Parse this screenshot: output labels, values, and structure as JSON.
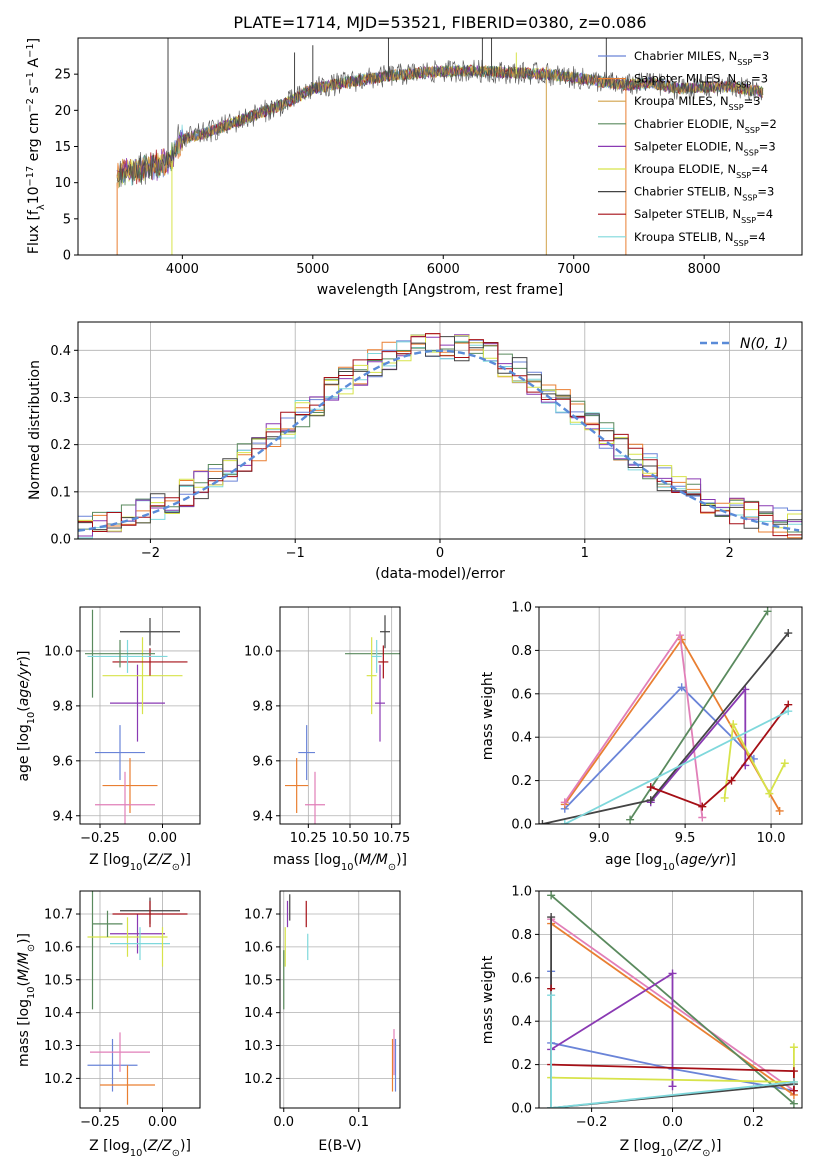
{
  "title": "PLATE=1714, MJD=53521, FIBERID=0380, z=0.086",
  "colors": {
    "chabrier_miles": "#6a84d8",
    "salpeter_miles": "#e97f32",
    "kroupa_miles": "#d2a24a",
    "chabrier_elodie": "#5a8a5e",
    "salpeter_elodie": "#8a3ab3",
    "kroupa_elodie": "#d7e34a",
    "chabrier_stelib": "#444444",
    "salpeter_stelib": "#a50f16",
    "kroupa_stelib": "#7fd8dc",
    "pink": "#e17fb8",
    "normal": "#5a8bd8"
  },
  "chart_data": [
    {
      "id": "spectrum",
      "type": "line",
      "xlabel": "wavelength [Angstrom, rest frame]",
      "ylabel": "Flux [f_λ10^-17 erg cm^-2 s^-1 A^-1]",
      "xlim": [
        3200,
        8750
      ],
      "ylim": [
        0,
        30
      ],
      "xticks": [
        4000,
        5000,
        6000,
        7000,
        8000
      ],
      "yticks": [
        0,
        5,
        10,
        15,
        20,
        25
      ],
      "continuum": {
        "x": [
          3500,
          3700,
          3900,
          4000,
          4200,
          4500,
          4800,
          5000,
          5300,
          5600,
          5900,
          6200,
          6500,
          6800,
          7000,
          7200,
          7400,
          7600,
          7800,
          8000,
          8200,
          8450
        ],
        "y": [
          11,
          12,
          13,
          16,
          17,
          19,
          21,
          23,
          24,
          24.8,
          25.3,
          25.5,
          25.2,
          25,
          24.5,
          24,
          23.5,
          23.8,
          23,
          23.2,
          23.3,
          22.5
        ]
      },
      "legend": [
        {
          "text": "Chabrier MILES, N",
          "sub": "SSP",
          "tail": "=3"
        },
        {
          "text": "Salpeter MILES, N",
          "sub": "SSP",
          "tail": "=3"
        },
        {
          "text": "Kroupa MILES, N",
          "sub": "SSP",
          "tail": "=3"
        },
        {
          "text": "Chabrier ELODIE, N",
          "sub": "SSP",
          "tail": "=2"
        },
        {
          "text": "Salpeter ELODIE, N",
          "sub": "SSP",
          "tail": "=3"
        },
        {
          "text": "Kroupa ELODIE, N",
          "sub": "SSP",
          "tail": "=4"
        },
        {
          "text": "Chabrier STELIB, N",
          "sub": "SSP",
          "tail": "=3"
        },
        {
          "text": "Salpeter STELIB, N",
          "sub": "SSP",
          "tail": "=4"
        },
        {
          "text": "Kroupa STELIB, N",
          "sub": "SSP",
          "tail": "=4"
        }
      ]
    },
    {
      "id": "residuals",
      "type": "histogram",
      "xlabel": "(data-model)/error",
      "ylabel": "Normed distribution",
      "xlim": [
        -2.5,
        2.5
      ],
      "ylim": [
        0,
        0.46
      ],
      "xticks": [
        -2,
        -1,
        0,
        1,
        2
      ],
      "yticks": [
        0.0,
        0.1,
        0.2,
        0.3,
        0.4
      ],
      "bin_width": 0.1,
      "legend": "N(0, 1)"
    },
    {
      "id": "age_vs_z",
      "type": "errorbar",
      "xlabel": "Z [log10(Z/Z⊙)]",
      "ylabel": "age  [log10(age/yr)]",
      "xlim": [
        -0.33,
        0.15
      ],
      "ylim": [
        9.37,
        10.16
      ],
      "xticks": [
        -0.25,
        0.0
      ],
      "yticks": [
        9.4,
        9.6,
        9.8,
        10.0
      ],
      "points": [
        {
          "x": -0.17,
          "y": 9.63,
          "dx": 0.1,
          "dy": 0.1,
          "c": "chabrier_miles"
        },
        {
          "x": -0.13,
          "y": 9.51,
          "dx": 0.11,
          "dy": 0.1,
          "c": "salpeter_miles"
        },
        {
          "x": -0.15,
          "y": 9.44,
          "dx": 0.12,
          "dy": 0.12,
          "c": "pink"
        },
        {
          "x": -0.28,
          "y": 9.99,
          "dx": 0.0,
          "dy": 0.16,
          "c": "chabrier_elodie"
        },
        {
          "x": -0.1,
          "y": 9.81,
          "dx": 0.11,
          "dy": 0.14,
          "c": "salpeter_elodie"
        },
        {
          "x": -0.08,
          "y": 9.91,
          "dx": 0.16,
          "dy": 0.14,
          "c": "kroupa_elodie"
        },
        {
          "x": -0.05,
          "y": 10.07,
          "dx": 0.12,
          "dy": 0.05,
          "c": "chabrier_stelib"
        },
        {
          "x": -0.05,
          "y": 9.96,
          "dx": 0.15,
          "dy": 0.05,
          "c": "salpeter_stelib"
        },
        {
          "x": -0.14,
          "y": 9.98,
          "dx": 0.16,
          "dy": 0.06,
          "c": "kroupa_stelib"
        },
        {
          "x": -0.17,
          "y": 9.99,
          "dx": 0.14,
          "dy": 0.05,
          "c": "chabrier_elodie"
        }
      ]
    },
    {
      "id": "age_vs_mass",
      "type": "errorbar",
      "xlabel": "mass [log10(M/M⊙)]",
      "ylabel": "",
      "xlim": [
        10.08,
        10.8
      ],
      "ylim": [
        9.37,
        10.16
      ],
      "xticks": [
        10.25,
        10.5,
        10.75
      ],
      "yticks": [
        9.4,
        9.6,
        10.0
      ],
      "ytick_labels": [
        "9.4",
        "9.6",
        "9.8",
        "10.0"
      ],
      "yticks_full": [
        9.4,
        9.6,
        9.8,
        10.0
      ],
      "points": [
        {
          "x": 10.24,
          "y": 9.63,
          "dx": 0.05,
          "dy": 0.1,
          "c": "chabrier_miles"
        },
        {
          "x": 10.18,
          "y": 9.51,
          "dx": 0.07,
          "dy": 0.1,
          "c": "salpeter_miles"
        },
        {
          "x": 10.29,
          "y": 9.44,
          "dx": 0.06,
          "dy": 0.12,
          "c": "pink"
        },
        {
          "x": 10.66,
          "y": 9.99,
          "dx": 0.19,
          "dy": 0.0,
          "c": "chabrier_elodie"
        },
        {
          "x": 10.68,
          "y": 9.81,
          "dx": 0.03,
          "dy": 0.14,
          "c": "salpeter_elodie"
        },
        {
          "x": 10.63,
          "y": 9.91,
          "dx": 0.03,
          "dy": 0.14,
          "c": "kroupa_elodie"
        },
        {
          "x": 10.71,
          "y": 10.07,
          "dx": 0.03,
          "dy": 0.06,
          "c": "chabrier_stelib"
        },
        {
          "x": 10.7,
          "y": 9.96,
          "dx": 0.03,
          "dy": 0.06,
          "c": "salpeter_stelib"
        },
        {
          "x": 10.66,
          "y": 9.98,
          "dx": 0.03,
          "dy": 0.06,
          "c": "kroupa_stelib"
        }
      ]
    },
    {
      "id": "weight_vs_age",
      "type": "line",
      "xlabel": "age  [log10(age/yr)]",
      "ylabel": "mass weight",
      "xlim": [
        8.65,
        10.18
      ],
      "ylim": [
        0,
        1.0
      ],
      "xticks": [
        9.0,
        9.5,
        10.0
      ],
      "yticks": [
        0.0,
        0.2,
        0.4,
        0.6,
        0.8,
        1.0
      ],
      "series": [
        {
          "c": "chabrier_miles",
          "x": [
            8.8,
            9.48,
            9.9
          ],
          "y": [
            0.07,
            0.63,
            0.3
          ]
        },
        {
          "c": "salpeter_miles",
          "x": [
            8.8,
            9.48,
            10.05
          ],
          "y": [
            0.09,
            0.85,
            0.06
          ]
        },
        {
          "c": "pink",
          "x": [
            8.8,
            9.47,
            9.6
          ],
          "y": [
            0.1,
            0.87,
            0.03
          ]
        },
        {
          "c": "chabrier_elodie",
          "x": [
            9.18,
            9.98
          ],
          "y": [
            0.02,
            0.98
          ]
        },
        {
          "c": "salpeter_elodie",
          "x": [
            9.3,
            9.85,
            9.85
          ],
          "y": [
            0.1,
            0.62,
            0.27
          ]
        },
        {
          "c": "kroupa_elodie",
          "x": [
            9.73,
            9.78,
            9.99,
            10.08
          ],
          "y": [
            0.12,
            0.46,
            0.14,
            0.28
          ]
        },
        {
          "c": "chabrier_stelib",
          "x": [
            8.67,
            9.3,
            10.1
          ],
          "y": [
            0.0,
            0.11,
            0.88
          ]
        },
        {
          "c": "salpeter_stelib",
          "x": [
            9.3,
            9.6,
            9.77,
            10.1
          ],
          "y": [
            0.17,
            0.08,
            0.2,
            0.55
          ]
        },
        {
          "c": "kroupa_stelib",
          "x": [
            8.8,
            10.1
          ],
          "y": [
            0.0,
            0.52
          ]
        }
      ]
    },
    {
      "id": "mass_vs_z",
      "type": "errorbar",
      "xlabel": "Z [log10(Z/Z⊙)]",
      "ylabel": "mass [log10(M/M⊙)]",
      "xlim": [
        -0.33,
        0.15
      ],
      "ylim": [
        10.11,
        10.77
      ],
      "xticks": [
        -0.25,
        0.0
      ],
      "yticks": [
        10.2,
        10.3,
        10.4,
        10.5,
        10.6,
        10.7
      ],
      "points": [
        {
          "x": -0.2,
          "y": 10.24,
          "dx": 0.1,
          "dy": 0.08,
          "c": "chabrier_miles"
        },
        {
          "x": -0.14,
          "y": 10.18,
          "dx": 0.11,
          "dy": 0.06,
          "c": "salpeter_miles"
        },
        {
          "x": -0.17,
          "y": 10.28,
          "dx": 0.12,
          "dy": 0.06,
          "c": "pink"
        },
        {
          "x": -0.28,
          "y": 10.66,
          "dx": 0.0,
          "dy": 0.25,
          "c": "chabrier_elodie"
        },
        {
          "x": -0.1,
          "y": 10.64,
          "dx": 0.11,
          "dy": 0.06,
          "c": "salpeter_elodie"
        },
        {
          "x": -0.14,
          "y": 10.63,
          "dx": 0.16,
          "dy": 0.06,
          "c": "kroupa_elodie"
        },
        {
          "x": -0.05,
          "y": 10.71,
          "dx": 0.12,
          "dy": 0.04,
          "c": "chabrier_stelib"
        },
        {
          "x": -0.05,
          "y": 10.7,
          "dx": 0.15,
          "dy": 0.04,
          "c": "salpeter_stelib"
        },
        {
          "x": -0.09,
          "y": 10.61,
          "dx": 0.12,
          "dy": 0.05,
          "c": "kroupa_stelib"
        },
        {
          "x": -0.22,
          "y": 10.67,
          "dx": 0.06,
          "dy": 0.04,
          "c": "chabrier_elodie"
        },
        {
          "x": 0.0,
          "y": 10.6,
          "dx": 0.0,
          "dy": 0.06,
          "c": "kroupa_elodie"
        }
      ]
    },
    {
      "id": "mass_vs_ebv",
      "type": "errorbar",
      "xlabel": "E(B-V)",
      "ylabel": "",
      "xlim": [
        -0.005,
        0.155
      ],
      "ylim": [
        10.11,
        10.77
      ],
      "xticks": [
        0.0,
        0.1
      ],
      "yticks": [
        10.2,
        10.3,
        10.4,
        10.5,
        10.6,
        10.7
      ],
      "points": [
        {
          "x": 0.0,
          "y": 10.5,
          "dx": 0.0,
          "dy": 0.09,
          "c": "chabrier_elodie"
        },
        {
          "x": 0.002,
          "y": 10.6,
          "dx": 0.0,
          "dy": 0.06,
          "c": "kroupa_elodie"
        },
        {
          "x": 0.005,
          "y": 10.7,
          "dx": 0.0,
          "dy": 0.04,
          "c": "salpeter_elodie"
        },
        {
          "x": 0.008,
          "y": 10.72,
          "dx": 0.0,
          "dy": 0.04,
          "c": "chabrier_stelib"
        },
        {
          "x": 0.03,
          "y": 10.7,
          "dx": 0.0,
          "dy": 0.04,
          "c": "salpeter_stelib"
        },
        {
          "x": 0.032,
          "y": 10.6,
          "dx": 0.0,
          "dy": 0.04,
          "c": "kroupa_stelib"
        },
        {
          "x": 0.145,
          "y": 10.24,
          "dx": 0.0,
          "dy": 0.08,
          "c": "salpeter_miles"
        },
        {
          "x": 0.147,
          "y": 10.28,
          "dx": 0.0,
          "dy": 0.07,
          "c": "pink"
        },
        {
          "x": 0.149,
          "y": 10.24,
          "dx": 0.0,
          "dy": 0.08,
          "c": "chabrier_miles"
        }
      ]
    },
    {
      "id": "weight_vs_z",
      "type": "line",
      "xlabel": "Z [log10(Z/Z⊙)]",
      "ylabel": "mass weight",
      "xlim": [
        -0.33,
        0.32
      ],
      "ylim": [
        0,
        1.0
      ],
      "xticks": [
        -0.2,
        0.0,
        0.2
      ],
      "yticks": [
        0.0,
        0.2,
        0.4,
        0.6,
        0.8,
        1.0
      ],
      "series": [
        {
          "c": "chabrier_miles",
          "x": [
            -0.3,
            -0.3,
            0.0,
            0.3
          ],
          "y": [
            0.63,
            0.3,
            0.18,
            0.08
          ]
        },
        {
          "c": "salpeter_miles",
          "x": [
            -0.3,
            0.3
          ],
          "y": [
            0.85,
            0.06
          ]
        },
        {
          "c": "pink",
          "x": [
            -0.3,
            0.3
          ],
          "y": [
            0.87,
            0.08
          ]
        },
        {
          "c": "chabrier_elodie",
          "x": [
            -0.3,
            0.3
          ],
          "y": [
            0.98,
            0.02
          ]
        },
        {
          "c": "salpeter_elodie",
          "x": [
            -0.3,
            0.0,
            0.0
          ],
          "y": [
            0.27,
            0.62,
            0.1
          ]
        },
        {
          "c": "kroupa_elodie",
          "x": [
            -0.3,
            0.3,
            0.3
          ],
          "y": [
            0.14,
            0.12,
            0.28
          ]
        },
        {
          "c": "chabrier_stelib",
          "x": [
            -0.3,
            -0.3,
            0.3
          ],
          "y": [
            0.88,
            0.0,
            0.11
          ]
        },
        {
          "c": "salpeter_stelib",
          "x": [
            -0.3,
            -0.3,
            0.3,
            0.3
          ],
          "y": [
            0.55,
            0.2,
            0.17,
            0.08
          ]
        },
        {
          "c": "kroupa_stelib",
          "x": [
            -0.3,
            -0.3,
            0.3
          ],
          "y": [
            0.52,
            0.0,
            0.12
          ]
        }
      ]
    }
  ]
}
